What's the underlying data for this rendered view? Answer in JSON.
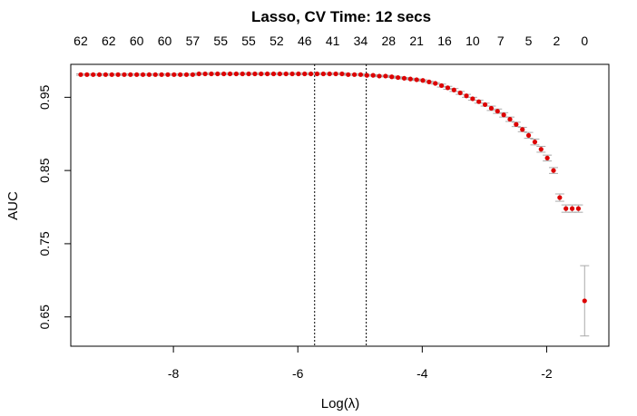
{
  "chart_data": {
    "type": "scatter",
    "title": "Lasso,  CV Time:  12 secs",
    "xlabel": "Log(λ)",
    "ylabel": "AUC",
    "xlim": [
      -9.65,
      -1.0
    ],
    "ylim": [
      0.61,
      0.995
    ],
    "x_ticks": [
      -8,
      -6,
      -4,
      -2
    ],
    "x_tick_labels": [
      "-8",
      "-6",
      "-4",
      "-2"
    ],
    "y_ticks": [
      0.65,
      0.75,
      0.85,
      0.95
    ],
    "y_tick_labels": [
      "0.65",
      "0.75",
      "0.85",
      "0.95"
    ],
    "top_axis_labels": [
      "62",
      "62",
      "60",
      "60",
      "57",
      "55",
      "55",
      "52",
      "46",
      "41",
      "34",
      "28",
      "21",
      "16",
      "10",
      "7",
      "5",
      "2",
      "0"
    ],
    "vlines": [
      -5.73,
      -4.9
    ],
    "grid": false,
    "point_color": "#dd0000",
    "errorbar_color": "#aaaaaa",
    "x": [
      -9.49,
      -9.39,
      -9.29,
      -9.19,
      -9.09,
      -8.99,
      -8.89,
      -8.79,
      -8.69,
      -8.59,
      -8.49,
      -8.39,
      -8.29,
      -8.19,
      -8.09,
      -7.99,
      -7.89,
      -7.79,
      -7.69,
      -7.59,
      -7.49,
      -7.39,
      -7.29,
      -7.19,
      -7.09,
      -6.99,
      -6.89,
      -6.79,
      -6.69,
      -6.59,
      -6.49,
      -6.39,
      -6.29,
      -6.19,
      -6.09,
      -5.99,
      -5.89,
      -5.79,
      -5.69,
      -5.59,
      -5.49,
      -5.39,
      -5.29,
      -5.19,
      -5.09,
      -4.99,
      -4.89,
      -4.79,
      -4.69,
      -4.59,
      -4.49,
      -4.39,
      -4.29,
      -4.19,
      -4.09,
      -3.99,
      -3.89,
      -3.79,
      -3.69,
      -3.59,
      -3.49,
      -3.39,
      -3.29,
      -3.19,
      -3.09,
      -2.99,
      -2.89,
      -2.79,
      -2.69,
      -2.59,
      -2.49,
      -2.39,
      -2.29,
      -2.19,
      -2.09,
      -1.99,
      -1.89,
      -1.79,
      -1.69,
      -1.59,
      -1.49,
      -1.39
    ],
    "y": [
      0.981,
      0.981,
      0.981,
      0.981,
      0.981,
      0.981,
      0.981,
      0.981,
      0.981,
      0.981,
      0.981,
      0.981,
      0.981,
      0.981,
      0.981,
      0.981,
      0.981,
      0.981,
      0.981,
      0.982,
      0.982,
      0.982,
      0.982,
      0.982,
      0.982,
      0.982,
      0.982,
      0.982,
      0.982,
      0.982,
      0.982,
      0.982,
      0.982,
      0.982,
      0.982,
      0.982,
      0.982,
      0.982,
      0.982,
      0.982,
      0.982,
      0.982,
      0.982,
      0.981,
      0.981,
      0.981,
      0.98,
      0.98,
      0.979,
      0.979,
      0.978,
      0.977,
      0.976,
      0.975,
      0.974,
      0.973,
      0.971,
      0.969,
      0.966,
      0.963,
      0.96,
      0.956,
      0.952,
      0.948,
      0.944,
      0.94,
      0.935,
      0.931,
      0.926,
      0.92,
      0.913,
      0.906,
      0.898,
      0.889,
      0.879,
      0.867,
      0.85,
      0.813,
      0.798,
      0.798,
      0.798,
      0.672
    ],
    "y_err": [
      0.001,
      0.001,
      0.001,
      0.001,
      0.001,
      0.001,
      0.001,
      0.001,
      0.001,
      0.001,
      0.001,
      0.001,
      0.001,
      0.001,
      0.001,
      0.001,
      0.001,
      0.001,
      0.001,
      0.001,
      0.001,
      0.001,
      0.001,
      0.001,
      0.001,
      0.001,
      0.001,
      0.001,
      0.001,
      0.001,
      0.001,
      0.001,
      0.001,
      0.001,
      0.001,
      0.001,
      0.001,
      0.001,
      0.001,
      0.001,
      0.001,
      0.001,
      0.001,
      0.001,
      0.001,
      0.001,
      0.001,
      0.001,
      0.001,
      0.001,
      0.001,
      0.001,
      0.001,
      0.001,
      0.001,
      0.001,
      0.001,
      0.001,
      0.002,
      0.002,
      0.002,
      0.002,
      0.002,
      0.002,
      0.002,
      0.002,
      0.003,
      0.003,
      0.003,
      0.003,
      0.003,
      0.003,
      0.004,
      0.004,
      0.004,
      0.004,
      0.004,
      0.005,
      0.005,
      0.005,
      0.005,
      0.048
    ]
  }
}
